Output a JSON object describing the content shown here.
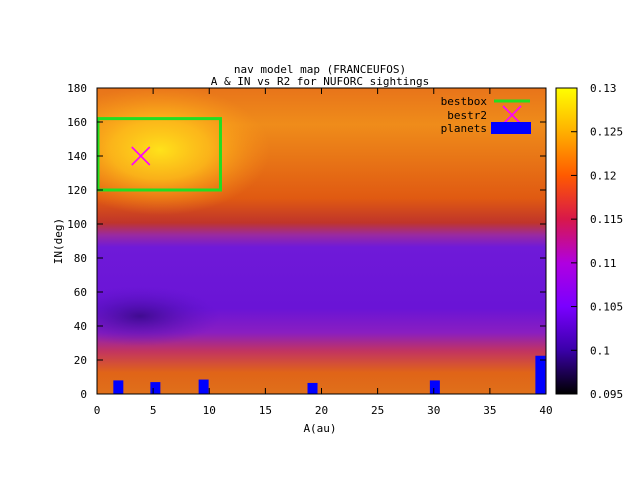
{
  "chart_data": {
    "type": "heatmap",
    "title": "nav model map (FRANCEUFOS)",
    "subtitle": "A & IN vs R2 for NUFORC sightings",
    "xlabel": "A(au)",
    "ylabel": "IN(deg)",
    "xlim": [
      0,
      40
    ],
    "ylim": [
      0,
      180
    ],
    "xticks": [
      "0",
      "5",
      "10",
      "15",
      "20",
      "25",
      "30",
      "35",
      "40"
    ],
    "yticks": [
      "0",
      "20",
      "40",
      "60",
      "80",
      "100",
      "120",
      "140",
      "160",
      "180"
    ],
    "colorbar": {
      "range": [
        0.095,
        0.13
      ],
      "ticks": [
        "0.095",
        "0.1",
        "0.105",
        "0.11",
        "0.115",
        "0.12",
        "0.125",
        "0.13"
      ],
      "palette": [
        "#000000",
        "#3a00a8",
        "#7a00ff",
        "#b000e0",
        "#d8184a",
        "#ff5a00",
        "#ffb000",
        "#ffff00"
      ]
    },
    "legend": {
      "placement": "top-right",
      "entries": [
        {
          "label": "bestbox",
          "color": "#22dd22"
        },
        {
          "label": "bestr2",
          "color": "#ff00ff"
        },
        {
          "label": "planets",
          "color": "#0000ff"
        }
      ]
    },
    "bestbox": {
      "x": [
        0,
        11
      ],
      "y": [
        120,
        162
      ]
    },
    "bestr2": {
      "x": 3.9,
      "y": 140
    },
    "planets": [
      {
        "x": 1.9,
        "y": 8
      },
      {
        "x": 5.2,
        "y": 7
      },
      {
        "x": 9.5,
        "y": 8.5
      },
      {
        "x": 19.2,
        "y": 6.5
      },
      {
        "x": 30.1,
        "y": 8
      },
      {
        "x": 39.5,
        "y": 22.5
      }
    ],
    "grid": false
  }
}
